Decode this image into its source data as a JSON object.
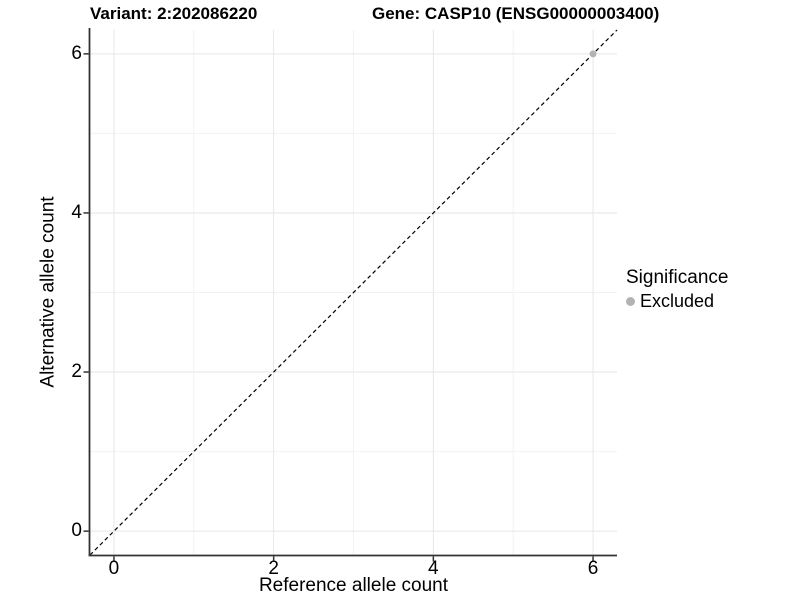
{
  "titles": {
    "variant": "Variant: 2:202086220",
    "gene": "Gene: CASP10 (ENSG00000003400)"
  },
  "chart_data": {
    "type": "scatter",
    "xlabel": "Reference allele count",
    "ylabel": "Alternative allele count",
    "xlim": [
      -0.3,
      6.3
    ],
    "ylim": [
      -0.3,
      6.3
    ],
    "x_ticks": [
      0,
      2,
      4,
      6
    ],
    "y_ticks": [
      0,
      2,
      4,
      6
    ],
    "x_minor_ticks": [
      1,
      3,
      5
    ],
    "y_minor_ticks": [
      1,
      3,
      5
    ],
    "grid": true,
    "identity_line": {
      "style": "dashed",
      "from": [
        -0.3,
        -0.3
      ],
      "to": [
        6.3,
        6.3
      ],
      "color": "#000000"
    },
    "series": [
      {
        "name": "Excluded",
        "color": "#b3b3b3",
        "points": [
          [
            6,
            6
          ]
        ]
      }
    ],
    "legend": {
      "title": "Significance",
      "position": "right",
      "items": [
        {
          "label": "Excluded",
          "color": "#b3b3b3"
        }
      ]
    }
  },
  "colors": {
    "background": "#ffffff",
    "grid_major": "#e6e6e6",
    "grid_minor": "#f2f2f2",
    "axis_line": "#333333",
    "text": "#000000",
    "point": "#b3b3b3"
  }
}
